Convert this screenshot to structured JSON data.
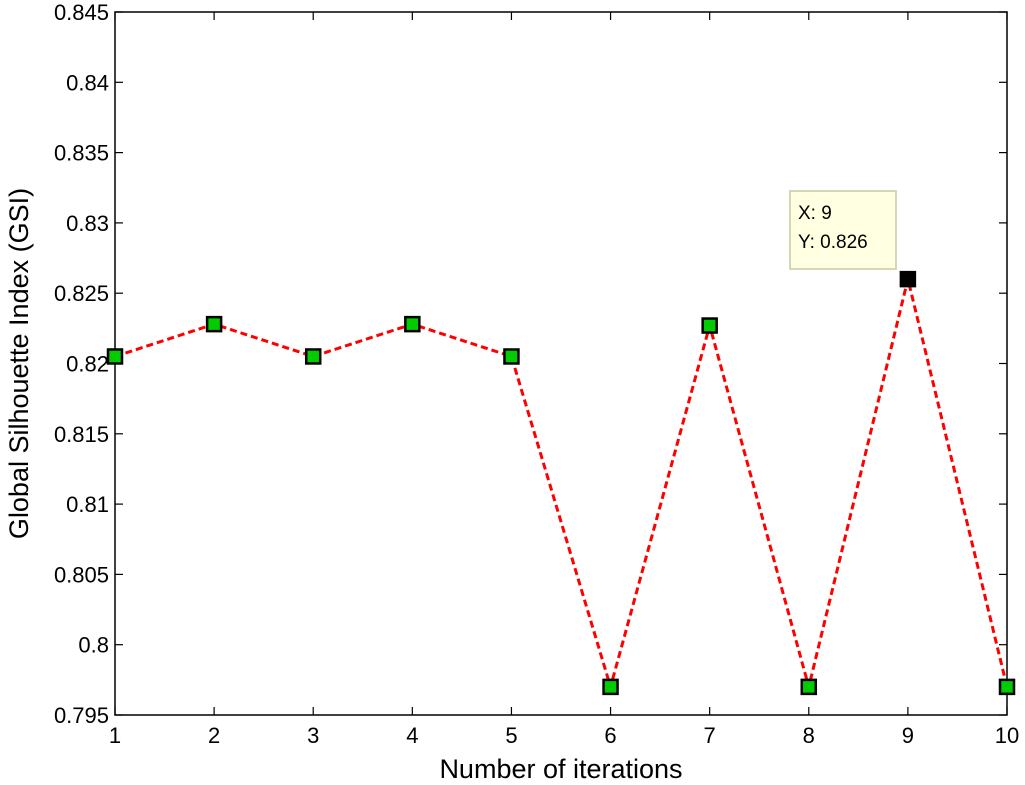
{
  "chart_data": {
    "type": "line",
    "title": "",
    "xlabel": "Number of iterations",
    "ylabel": "Global Silhouette Index (GSI)",
    "xlim": [
      1,
      10
    ],
    "ylim": [
      0.795,
      0.845
    ],
    "x_ticks": [
      1,
      2,
      3,
      4,
      5,
      6,
      7,
      8,
      9,
      10
    ],
    "y_ticks": [
      "0.795",
      "0.8",
      "0.805",
      "0.81",
      "0.815",
      "0.82",
      "0.825",
      "0.83",
      "0.835",
      "0.84",
      "0.845"
    ],
    "grid": false,
    "series": [
      {
        "name": "GSI",
        "x": [
          1,
          2,
          3,
          4,
          5,
          6,
          7,
          8,
          9,
          10
        ],
        "y": [
          0.8205,
          0.8228,
          0.8205,
          0.8228,
          0.8205,
          0.797,
          0.8227,
          0.797,
          0.826,
          0.797
        ],
        "line_color": "#ff0000",
        "line_style": "dashed",
        "marker": "square",
        "marker_face_color": "#00cc00",
        "marker_edge_color": "#000000"
      }
    ],
    "datatip": {
      "point_index": 8,
      "x_label": "X: 9",
      "y_label": "Y: 0.826",
      "background": "#ffffe1",
      "highlight_marker_color": "#000000"
    }
  }
}
